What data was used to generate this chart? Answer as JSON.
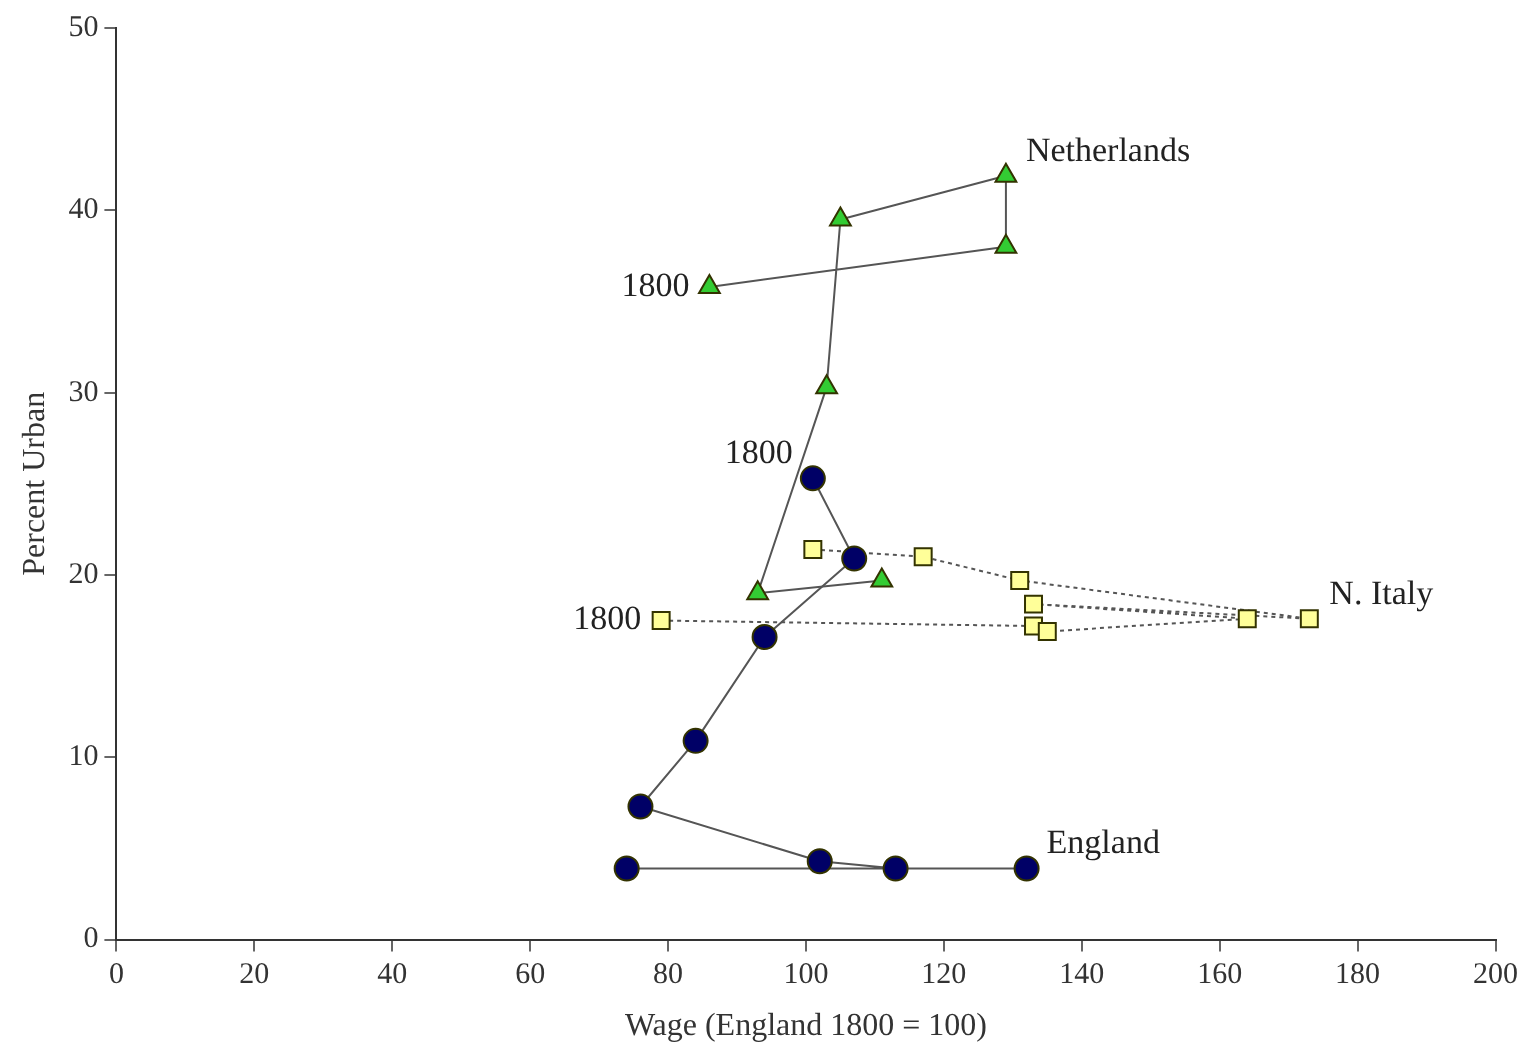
{
  "chart_data": {
    "type": "line",
    "xlabel": "Wage (England 1800 = 100)",
    "ylabel": "Percent Urban",
    "xlim": [
      0,
      200
    ],
    "xticks": [
      0,
      20,
      40,
      60,
      80,
      100,
      120,
      140,
      160,
      180,
      200
    ],
    "ylim": [
      0,
      50
    ],
    "yticks": [
      0,
      10,
      20,
      30,
      40,
      50
    ],
    "grid": false,
    "legend": false,
    "series": [
      {
        "name": "Netherlands",
        "color": "#33cc33",
        "marker": "triangle",
        "line_style": "solid",
        "x": [
          86,
          129,
          129,
          105,
          103,
          93,
          111
        ],
        "values": [
          35.8,
          38.0,
          41.9,
          39.5,
          30.3,
          19.0,
          19.7
        ]
      },
      {
        "name": "England",
        "color": "#000066",
        "marker": "circle",
        "line_style": "solid",
        "x": [
          101,
          107,
          94,
          84,
          76,
          102,
          113,
          132,
          74
        ],
        "values": [
          25.3,
          20.9,
          16.6,
          10.9,
          7.3,
          4.3,
          3.9,
          3.9,
          3.9
        ]
      },
      {
        "name": "N. Italy",
        "color": "#ffff99",
        "marker": "square",
        "line_style": "dotted",
        "x": [
          79,
          133,
          135,
          164,
          133,
          173,
          131,
          117,
          101
        ],
        "values": [
          17.5,
          17.2,
          16.9,
          17.6,
          18.4,
          17.6,
          19.7,
          21.0,
          21.4
        ]
      }
    ],
    "annotations": [
      {
        "text": "1800",
        "x": 86,
        "y": 35.8
      },
      {
        "text": "1800",
        "x": 101,
        "y": 25.3
      },
      {
        "text": "1800",
        "x": 79,
        "y": 17.5
      }
    ]
  }
}
